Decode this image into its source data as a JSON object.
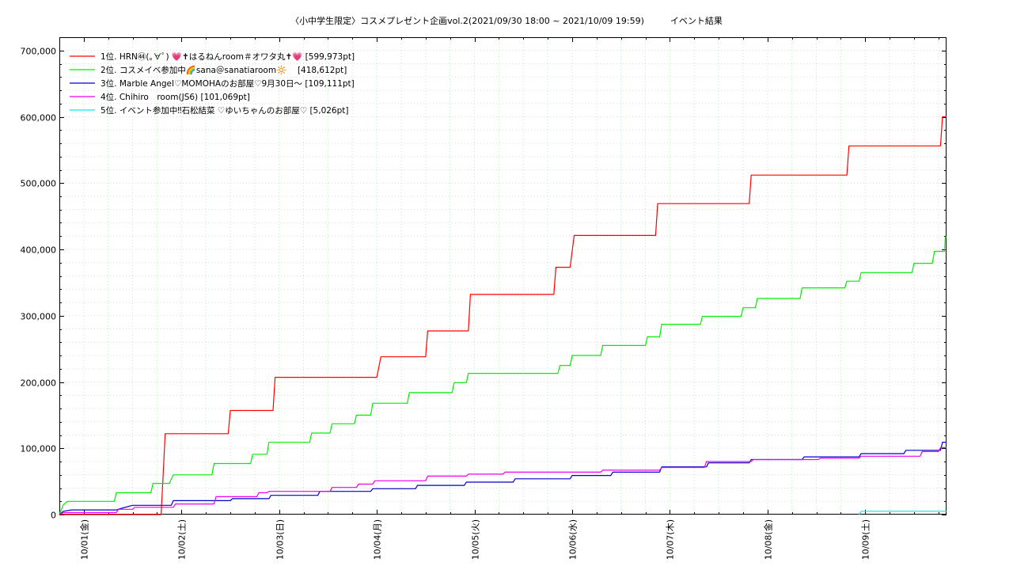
{
  "chart_data": {
    "type": "line",
    "title": "〈小中学生限定〉コスメプレゼント企画vol.2(2021/09/30 18:00 ~ 2021/10/09 19:59)　　　イベント結果",
    "xlabel": "",
    "ylabel": "",
    "xlim": [
      "2021-09-30 18:00",
      "2021-10-09 19:59"
    ],
    "ylim": [
      0,
      720000
    ],
    "y_ticks": [
      0,
      100000,
      200000,
      300000,
      400000,
      500000,
      600000,
      700000
    ],
    "y_tick_labels": [
      "0",
      "100,000",
      "200,000",
      "300,000",
      "400,000",
      "500,000",
      "600,000",
      "700,000"
    ],
    "x_ticks": [
      "2021-10-01 00:00",
      "2021-10-02 00:00",
      "2021-10-03 00:00",
      "2021-10-04 00:00",
      "2021-10-05 00:00",
      "2021-10-06 00:00",
      "2021-10-07 00:00",
      "2021-10-08 00:00",
      "2021-10-09 00:00"
    ],
    "x_tick_labels": [
      "10/01(金)",
      "10/02(土)",
      "10/03(日)",
      "10/04(月)",
      "10/05(火)",
      "10/06(水)",
      "10/07(木)",
      "10/08(金)",
      "10/09(土)"
    ],
    "grid": true,
    "legend_position": "top-left",
    "series": [
      {
        "name": "1位. HRN㊹(｡∀ﾟ) 💗✝はるねんroom＃オワタ丸✝💗 [599,973pt]",
        "color": "#ff0000",
        "points": [
          [
            "2021-09-30 18:00",
            0
          ],
          [
            "2021-10-01 19:00",
            0
          ],
          [
            "2021-10-01 19:20",
            40000
          ],
          [
            "2021-10-01 19:40",
            80000
          ],
          [
            "2021-10-01 20:00",
            122000
          ],
          [
            "2021-10-02 11:30",
            122000
          ],
          [
            "2021-10-02 12:00",
            157000
          ],
          [
            "2021-10-02 22:30",
            157000
          ],
          [
            "2021-10-02 23:00",
            207000
          ],
          [
            "2021-10-04 00:00",
            207000
          ],
          [
            "2021-10-04 01:00",
            238000
          ],
          [
            "2021-10-04 12:00",
            238000
          ],
          [
            "2021-10-04 12:30",
            277000
          ],
          [
            "2021-10-04 22:30",
            277000
          ],
          [
            "2021-10-04 23:00",
            332000
          ],
          [
            "2021-10-05 19:30",
            332000
          ],
          [
            "2021-10-05 20:00",
            373000
          ],
          [
            "2021-10-05 23:30",
            373000
          ],
          [
            "2021-10-06 00:30",
            421000
          ],
          [
            "2021-10-06 20:30",
            421000
          ],
          [
            "2021-10-06 21:00",
            469000
          ],
          [
            "2021-10-07 19:30",
            469000
          ],
          [
            "2021-10-07 20:00",
            512000
          ],
          [
            "2021-10-08 19:30",
            512000
          ],
          [
            "2021-10-08 20:00",
            556000
          ],
          [
            "2021-10-09 18:30",
            556000
          ],
          [
            "2021-10-09 19:00",
            599973
          ],
          [
            "2021-10-09 19:59",
            599973
          ]
        ]
      },
      {
        "name": "2位. コスメイベ参加中🌈sana＠sanatiaroom🔆　 [418,612pt]",
        "color": "#00ee00",
        "points": [
          [
            "2021-09-30 18:00",
            0
          ],
          [
            "2021-09-30 19:00",
            15000
          ],
          [
            "2021-09-30 20:00",
            20000
          ],
          [
            "2021-10-01 07:30",
            20000
          ],
          [
            "2021-10-01 08:00",
            33000
          ],
          [
            "2021-10-01 16:30",
            33000
          ],
          [
            "2021-10-01 17:00",
            47000
          ],
          [
            "2021-10-01 21:00",
            47000
          ],
          [
            "2021-10-01 22:00",
            60000
          ],
          [
            "2021-10-02 07:30",
            60000
          ],
          [
            "2021-10-02 08:00",
            77000
          ],
          [
            "2021-10-02 17:00",
            77000
          ],
          [
            "2021-10-02 17:30",
            91000
          ],
          [
            "2021-10-02 21:00",
            91000
          ],
          [
            "2021-10-02 21:30",
            109000
          ],
          [
            "2021-10-03 07:30",
            109000
          ],
          [
            "2021-10-03 08:00",
            123000
          ],
          [
            "2021-10-03 12:30",
            123000
          ],
          [
            "2021-10-03 13:00",
            137000
          ],
          [
            "2021-10-03 18:30",
            137000
          ],
          [
            "2021-10-03 19:00",
            150000
          ],
          [
            "2021-10-03 22:30",
            150000
          ],
          [
            "2021-10-03 23:00",
            168000
          ],
          [
            "2021-10-04 07:30",
            168000
          ],
          [
            "2021-10-04 08:00",
            184000
          ],
          [
            "2021-10-04 18:30",
            184000
          ],
          [
            "2021-10-04 19:00",
            199000
          ],
          [
            "2021-10-04 22:00",
            199000
          ],
          [
            "2021-10-04 22:30",
            213000
          ],
          [
            "2021-10-05 20:30",
            213000
          ],
          [
            "2021-10-05 21:00",
            225000
          ],
          [
            "2021-10-05 23:30",
            225000
          ],
          [
            "2021-10-06 00:00",
            240000
          ],
          [
            "2021-10-06 07:00",
            240000
          ],
          [
            "2021-10-06 07:30",
            255000
          ],
          [
            "2021-10-06 18:00",
            255000
          ],
          [
            "2021-10-06 18:30",
            268000
          ],
          [
            "2021-10-06 21:30",
            268000
          ],
          [
            "2021-10-06 22:00",
            287000
          ],
          [
            "2021-10-07 07:30",
            287000
          ],
          [
            "2021-10-07 08:00",
            299000
          ],
          [
            "2021-10-07 17:30",
            299000
          ],
          [
            "2021-10-07 18:00",
            312000
          ],
          [
            "2021-10-07 21:00",
            312000
          ],
          [
            "2021-10-07 21:30",
            326000
          ],
          [
            "2021-10-08 08:00",
            326000
          ],
          [
            "2021-10-08 08:30",
            342000
          ],
          [
            "2021-10-08 19:00",
            342000
          ],
          [
            "2021-10-08 19:30",
            352000
          ],
          [
            "2021-10-08 22:30",
            352000
          ],
          [
            "2021-10-08 23:00",
            365000
          ],
          [
            "2021-10-09 11:30",
            365000
          ],
          [
            "2021-10-09 12:00",
            379000
          ],
          [
            "2021-10-09 16:30",
            379000
          ],
          [
            "2021-10-09 17:00",
            397000
          ],
          [
            "2021-10-09 19:30",
            397000
          ],
          [
            "2021-10-09 19:40",
            418612
          ],
          [
            "2021-10-09 19:59",
            418612
          ]
        ]
      },
      {
        "name": "3位. Marble Angel♡MOMOHAのお部屋♡9月30日〜 [109,111pt]",
        "color": "#0000cc",
        "points": [
          [
            "2021-09-30 18:00",
            0
          ],
          [
            "2021-09-30 19:00",
            5000
          ],
          [
            "2021-09-30 21:00",
            7000
          ],
          [
            "2021-10-01 08:00",
            7000
          ],
          [
            "2021-10-01 09:00",
            9000
          ],
          [
            "2021-10-01 12:00",
            14000
          ],
          [
            "2021-10-01 21:30",
            14000
          ],
          [
            "2021-10-01 22:00",
            21000
          ],
          [
            "2021-10-02 12:00",
            21000
          ],
          [
            "2021-10-02 12:30",
            24000
          ],
          [
            "2021-10-02 21:30",
            24000
          ],
          [
            "2021-10-02 22:00",
            29000
          ],
          [
            "2021-10-03 09:30",
            29000
          ],
          [
            "2021-10-03 10:00",
            35000
          ],
          [
            "2021-10-03 22:30",
            35000
          ],
          [
            "2021-10-03 23:00",
            39000
          ],
          [
            "2021-10-04 09:30",
            39000
          ],
          [
            "2021-10-04 10:00",
            44000
          ],
          [
            "2021-10-04 21:30",
            44000
          ],
          [
            "2021-10-04 22:00",
            49000
          ],
          [
            "2021-10-05 09:30",
            49000
          ],
          [
            "2021-10-05 10:00",
            54000
          ],
          [
            "2021-10-05 23:30",
            54000
          ],
          [
            "2021-10-06 00:00",
            59000
          ],
          [
            "2021-10-06 09:30",
            59000
          ],
          [
            "2021-10-06 10:00",
            64000
          ],
          [
            "2021-10-06 21:30",
            64000
          ],
          [
            "2021-10-06 22:00",
            72000
          ],
          [
            "2021-10-07 09:00",
            72000
          ],
          [
            "2021-10-07 09:30",
            78000
          ],
          [
            "2021-10-07 19:30",
            78000
          ],
          [
            "2021-10-07 20:00",
            83000
          ],
          [
            "2021-10-08 08:30",
            83000
          ],
          [
            "2021-10-08 09:00",
            87000
          ],
          [
            "2021-10-08 22:30",
            87000
          ],
          [
            "2021-10-08 23:00",
            92000
          ],
          [
            "2021-10-09 09:30",
            92000
          ],
          [
            "2021-10-09 10:00",
            97000
          ],
          [
            "2021-10-09 18:30",
            97000
          ],
          [
            "2021-10-09 19:00",
            109111
          ],
          [
            "2021-10-09 19:59",
            109111
          ]
        ]
      },
      {
        "name": "4位. Chihiro　room(JS6) [101,069pt]",
        "color": "#ee00ee",
        "points": [
          [
            "2021-09-30 18:00",
            0
          ],
          [
            "2021-09-30 19:00",
            3000
          ],
          [
            "2021-10-01 08:00",
            3000
          ],
          [
            "2021-10-01 08:30",
            8000
          ],
          [
            "2021-10-01 12:00",
            8000
          ],
          [
            "2021-10-01 12:30",
            11000
          ],
          [
            "2021-10-01 22:00",
            11000
          ],
          [
            "2021-10-01 22:30",
            16000
          ],
          [
            "2021-10-02 08:00",
            16000
          ],
          [
            "2021-10-02 08:30",
            27000
          ],
          [
            "2021-10-02 18:30",
            27000
          ],
          [
            "2021-10-02 19:00",
            33000
          ],
          [
            "2021-10-02 21:00",
            33000
          ],
          [
            "2021-10-02 21:30",
            35000
          ],
          [
            "2021-10-03 12:30",
            35000
          ],
          [
            "2021-10-03 13:00",
            41000
          ],
          [
            "2021-10-03 19:00",
            41000
          ],
          [
            "2021-10-03 19:30",
            46000
          ],
          [
            "2021-10-03 23:00",
            46000
          ],
          [
            "2021-10-03 23:30",
            51000
          ],
          [
            "2021-10-04 12:00",
            51000
          ],
          [
            "2021-10-04 12:30",
            58000
          ],
          [
            "2021-10-04 22:00",
            58000
          ],
          [
            "2021-10-04 22:30",
            61000
          ],
          [
            "2021-10-05 07:00",
            61000
          ],
          [
            "2021-10-05 07:30",
            64000
          ],
          [
            "2021-10-06 07:00",
            64000
          ],
          [
            "2021-10-06 07:30",
            67000
          ],
          [
            "2021-10-06 21:30",
            67000
          ],
          [
            "2021-10-06 22:00",
            71000
          ],
          [
            "2021-10-07 08:30",
            71000
          ],
          [
            "2021-10-07 09:00",
            80000
          ],
          [
            "2021-10-07 20:00",
            80000
          ],
          [
            "2021-10-07 20:30",
            83000
          ],
          [
            "2021-10-08 12:30",
            83000
          ],
          [
            "2021-10-08 13:00",
            85000
          ],
          [
            "2021-10-08 22:30",
            85000
          ],
          [
            "2021-10-08 23:00",
            88000
          ],
          [
            "2021-10-09 13:30",
            88000
          ],
          [
            "2021-10-09 14:00",
            95000
          ],
          [
            "2021-10-09 18:00",
            95000
          ],
          [
            "2021-10-09 18:30",
            101069
          ],
          [
            "2021-10-09 19:59",
            101069
          ]
        ]
      },
      {
        "name": "5位. イベント参加中‼︎石松結菜 ♡ゆいちゃんのお部屋♡ [5,026pt]",
        "color": "#00eeee",
        "points": [
          [
            "2021-10-08 22:30",
            0
          ],
          [
            "2021-10-08 23:00",
            5026
          ],
          [
            "2021-10-09 19:59",
            5026
          ]
        ]
      }
    ]
  }
}
